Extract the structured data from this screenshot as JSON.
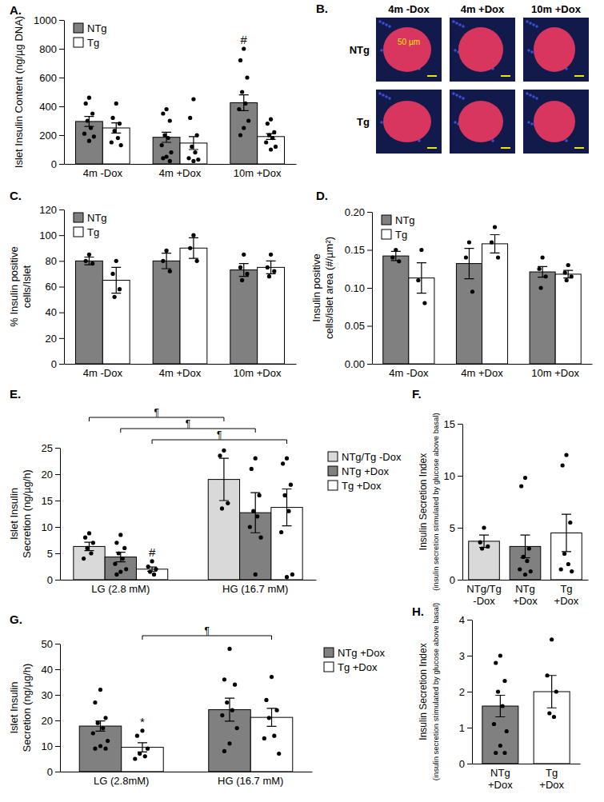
{
  "chart_data": [
    {
      "type": "bar",
      "title": "A.",
      "ylabel": [
        "Islet Insulin Content (ng/µg DNA)"
      ],
      "categories": [
        "4m -Dox",
        "4m +Dox",
        "10m +Dox"
      ],
      "series": [
        {
          "name": "NTg",
          "color": "#808080",
          "values": [
            295,
            185,
            425
          ],
          "errors": [
            35,
            35,
            55
          ],
          "points": [
            [
              460,
              420,
              350,
              300,
              250,
              210,
              190,
              160
            ],
            [
              380,
              350,
              300,
              200,
              180,
              130,
              80,
              50,
              40,
              20
            ],
            [
              800,
              720,
              600,
              500,
              420,
              380,
              300,
              250,
              200
            ]
          ]
        },
        {
          "name": "Tg",
          "color": "#ffffff",
          "values": [
            250,
            145,
            190
          ],
          "errors": [
            35,
            45,
            20
          ],
          "points": [
            [
              420,
              320,
              280,
              230,
              180,
              150,
              130
            ],
            [
              450,
              320,
              200,
              120,
              80,
              40,
              30,
              20
            ],
            [
              310,
              280,
              220,
              200,
              180,
              150,
              120,
              100
            ]
          ]
        }
      ],
      "ylim": [
        0,
        1000
      ],
      "yticks": [
        0,
        200,
        400,
        600,
        800,
        1000
      ],
      "legend": "upper left",
      "annotations": [
        {
          "text": "#",
          "series": "NTg",
          "category": "10m +Dox"
        }
      ]
    },
    {
      "type": "image",
      "title": "B.",
      "columns": [
        "4m -Dox",
        "4m +Dox",
        "10m +Dox"
      ],
      "rows": [
        "NTg",
        "Tg"
      ],
      "scale_bar": "50 µm"
    },
    {
      "type": "bar",
      "title": "C.",
      "ylabel": [
        "% Insulin positive",
        "cells/Islet"
      ],
      "categories": [
        "4m -Dox",
        "4m +Dox",
        "10m +Dox"
      ],
      "series": [
        {
          "name": "NTg",
          "color": "#808080",
          "values": [
            80,
            80,
            73
          ],
          "errors": [
            3,
            6,
            5
          ],
          "points": [
            [
              85,
              80,
              78
            ],
            [
              88,
              80,
              72
            ],
            [
              85,
              75,
              70,
              65
            ]
          ]
        },
        {
          "name": "Tg",
          "color": "#ffffff",
          "values": [
            65,
            90,
            75
          ],
          "errors": [
            10,
            8,
            5
          ],
          "points": [
            [
              80,
              70,
              58,
              52
            ],
            [
              100,
              90,
              80
            ],
            [
              85,
              75,
              72,
              68
            ]
          ]
        }
      ],
      "ylim": [
        0,
        120
      ],
      "yticks": [
        0,
        20,
        40,
        60,
        80,
        100,
        120
      ],
      "legend": "upper left"
    },
    {
      "type": "bar",
      "title": "D.",
      "ylabel": [
        "Insulin positive",
        "cells/islet area (#/µm²)"
      ],
      "categories": [
        "4m -Dox",
        "4m +Dox",
        "10m +Dox"
      ],
      "series": [
        {
          "name": "NTg",
          "color": "#808080",
          "values": [
            0.142,
            0.132,
            0.121
          ],
          "errors": [
            0.006,
            0.02,
            0.007
          ],
          "points": [
            [
              0.15,
              0.14,
              0.135
            ],
            [
              0.16,
              0.14,
              0.095
            ],
            [
              0.14,
              0.125,
              0.115,
              0.1
            ]
          ]
        },
        {
          "name": "Tg",
          "color": "#ffffff",
          "values": [
            0.113,
            0.158,
            0.118
          ],
          "errors": [
            0.02,
            0.012,
            0.005
          ],
          "points": [
            [
              0.15,
              0.11,
              0.08
            ],
            [
              0.18,
              0.16,
              0.14
            ],
            [
              0.13,
              0.12,
              0.115,
              0.11
            ]
          ]
        }
      ],
      "ylim": [
        0,
        0.2
      ],
      "yticks": [
        {
          "value": 0,
          "label": "0.00"
        },
        0.05,
        {
          "value": 0.1,
          "label": "0.10"
        },
        0.15,
        {
          "value": 0.2,
          "label": "0.20"
        }
      ],
      "legend": "upper left"
    },
    {
      "type": "bar",
      "title": "E.",
      "ylabel": [
        "Islet Insulin",
        "Secretion (ng/µg/h)"
      ],
      "categories": [
        "LG (2.8 mM)",
        "HG (16.7 mM)"
      ],
      "series": [
        {
          "name": "NTg/Tg -Dox",
          "color": "#d9d9d9",
          "values": [
            6.3,
            19.0
          ],
          "errors": [
            0.8,
            4.0
          ],
          "points": [
            [
              8.8,
              8.0,
              7.0,
              6.0,
              5.0,
              4.0
            ],
            [
              24.5,
              23.5,
              14.5,
              13.5
            ]
          ]
        },
        {
          "name": "NTg +Dox",
          "color": "#808080",
          "values": [
            4.3,
            12.7
          ],
          "errors": [
            0.9,
            3.8
          ],
          "points": [
            [
              8.5,
              7.0,
              6.0,
              5.0,
              4.0,
              3.0,
              2.0,
              1.5,
              1.0
            ],
            [
              23,
              21,
              16,
              13,
              12,
              10,
              8,
              1
            ]
          ]
        },
        {
          "name": "Tg +Dox",
          "color": "#ffffff",
          "values": [
            2.0,
            13.7
          ],
          "errors": [
            0.4,
            3.5
          ],
          "points": [
            [
              3.5,
              2.5,
              2.0,
              1.5,
              1.0
            ],
            [
              23,
              22,
              18,
              16,
              13,
              9,
              1,
              0.5
            ]
          ]
        }
      ],
      "ylim": [
        0,
        25
      ],
      "yticks": [
        0,
        5,
        10,
        15,
        20,
        25
      ],
      "legend": "right",
      "annotations": [
        {
          "text": "#",
          "series": "Tg +Dox",
          "category": "LG (2.8 mM)"
        },
        {
          "text": "¶",
          "from": {
            "series": "NTg/Tg -Dox",
            "category": "LG (2.8 mM)"
          },
          "to": {
            "series": "NTg/Tg -Dox",
            "category": "HG (16.7 mM)"
          }
        },
        {
          "text": "¶",
          "from": {
            "series": "NTg +Dox",
            "category": "LG (2.8 mM)"
          },
          "to": {
            "series": "NTg +Dox",
            "category": "HG (16.7 mM)"
          }
        },
        {
          "text": "¶",
          "from": {
            "series": "Tg +Dox",
            "category": "LG (2.8 mM)"
          },
          "to": {
            "series": "Tg +Dox",
            "category": "HG (16.7 mM)"
          }
        }
      ]
    },
    {
      "type": "bar",
      "title": "F.",
      "ylabel": [
        "Insulin Secretion Index",
        "(insulin secretion stimulated by glucose above basal)"
      ],
      "categories": [
        "NTg/Tg -Dox",
        "NTg +Dox",
        "Tg +Dox"
      ],
      "values": [
        3.7,
        3.2,
        4.5
      ],
      "errors": [
        0.6,
        1.1,
        1.8
      ],
      "points": [
        [
          5.0,
          3.6,
          3.2,
          3.0
        ],
        [
          9.8,
          9.0,
          3.0,
          2.2,
          1.8,
          1.0,
          0.8,
          0.5
        ],
        [
          12,
          11,
          5.5,
          2.5,
          1.5,
          1.0,
          0.8
        ]
      ],
      "colors": [
        "#d9d9d9",
        "#808080",
        "#ffffff"
      ],
      "ylim": [
        0,
        15
      ],
      "yticks": [
        0,
        5,
        10,
        15
      ]
    },
    {
      "type": "bar",
      "title": "G.",
      "ylabel": [
        "Islet Insulin",
        "Secretion (ng/µg/h)"
      ],
      "categories": [
        "LG (2.8mM)",
        "HG (16.7 mM)"
      ],
      "series": [
        {
          "name": "NTg +Dox",
          "color": "#808080",
          "values": [
            17.8,
            24.2
          ],
          "errors": [
            2.0,
            4.5
          ],
          "points": [
            [
              32,
              27,
              21,
              19,
              17,
              15,
              12,
              10,
              9,
              9
            ],
            [
              48,
              36,
              34,
              27,
              24,
              22,
              17,
              11,
              8
            ]
          ]
        },
        {
          "name": "Tg +Dox",
          "color": "#ffffff",
          "values": [
            9.5,
            21.2
          ],
          "errors": [
            1.8,
            3.5
          ],
          "points": [
            [
              16,
              14,
              9,
              7,
              6,
              5
            ],
            [
              37,
              28,
              24,
              21,
              14,
              13,
              7
            ]
          ]
        }
      ],
      "ylim": [
        0,
        50
      ],
      "yticks": [
        0,
        10,
        20,
        30,
        40,
        50
      ],
      "legend": "right",
      "annotations": [
        {
          "text": "*",
          "series": "Tg +Dox",
          "category": "LG (2.8mM)"
        },
        {
          "text": "¶",
          "from": {
            "series": "Tg +Dox",
            "category": "LG (2.8mM)"
          },
          "to": {
            "series": "Tg +Dox",
            "category": "HG (16.7 mM)"
          }
        }
      ]
    },
    {
      "type": "bar",
      "title": "H.",
      "ylabel": [
        "Insulin Secretion Index",
        "(insulin secretion stimulated by glucose above basal)"
      ],
      "categories": [
        "NTg +Dox",
        "Tg +Dox"
      ],
      "values": [
        1.6,
        2.0
      ],
      "errors": [
        0.3,
        0.45
      ],
      "points": [
        [
          3.0,
          2.8,
          2.3,
          2.0,
          1.6,
          1.1,
          0.9,
          0.5,
          0.3,
          0.3
        ],
        [
          3.45,
          2.45,
          2.0,
          1.4,
          1.3
        ]
      ],
      "colors": [
        "#808080",
        "#ffffff"
      ],
      "ylim": [
        0,
        4
      ],
      "yticks": [
        0,
        1,
        2,
        3,
        4
      ]
    }
  ]
}
